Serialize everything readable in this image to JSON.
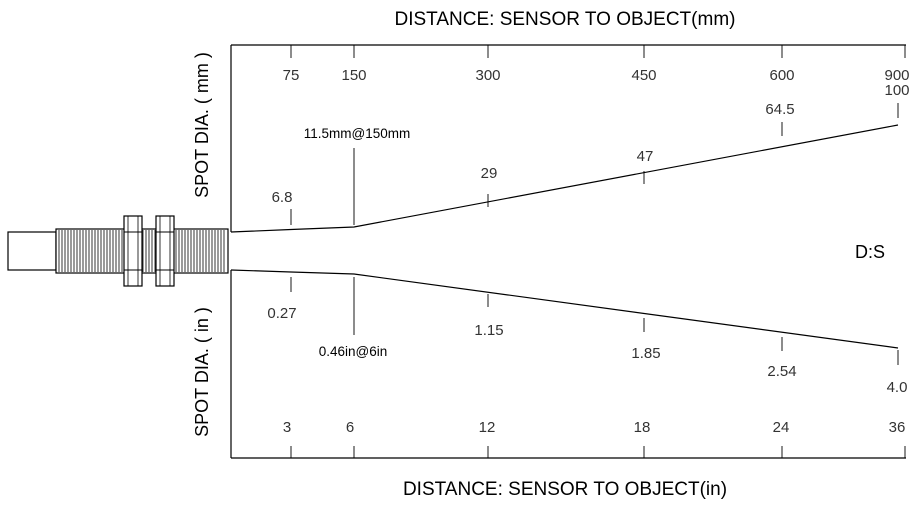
{
  "chart_data": {
    "type": "line",
    "top_axis": {
      "title": "DISTANCE:  SENSOR TO OBJECT(mm)",
      "ticks": [
        "75",
        "150",
        "300",
        "450",
        "600",
        "900"
      ]
    },
    "bottom_axis": {
      "title": "DISTANCE:  SENSOR TO OBJECT(in)",
      "ticks": [
        "3",
        "6",
        "12",
        "18",
        "24",
        "36"
      ]
    },
    "left_labels": {
      "top": "SPOT DIA. ( mm )",
      "bottom": "SPOT DIA. ( in )"
    },
    "ratio_label": "D:S",
    "spot_mm": [
      {
        "distance": 75,
        "value": "6.8"
      },
      {
        "distance": 150,
        "value": "11.5"
      },
      {
        "distance": 300,
        "value": "29"
      },
      {
        "distance": 450,
        "value": "47"
      },
      {
        "distance": 600,
        "value": "64.5"
      },
      {
        "distance": 900,
        "value": "100"
      }
    ],
    "spot_in": [
      {
        "distance": 3,
        "value": "0.27"
      },
      {
        "distance": 6,
        "value": "0.46"
      },
      {
        "distance": 12,
        "value": "1.15"
      },
      {
        "distance": 18,
        "value": "1.85"
      },
      {
        "distance": 24,
        "value": "2.54"
      },
      {
        "distance": 36,
        "value": "4.0"
      }
    ],
    "annotations": {
      "focus_mm": "11.5mm@150mm",
      "focus_in": "0.46in@6in"
    }
  }
}
